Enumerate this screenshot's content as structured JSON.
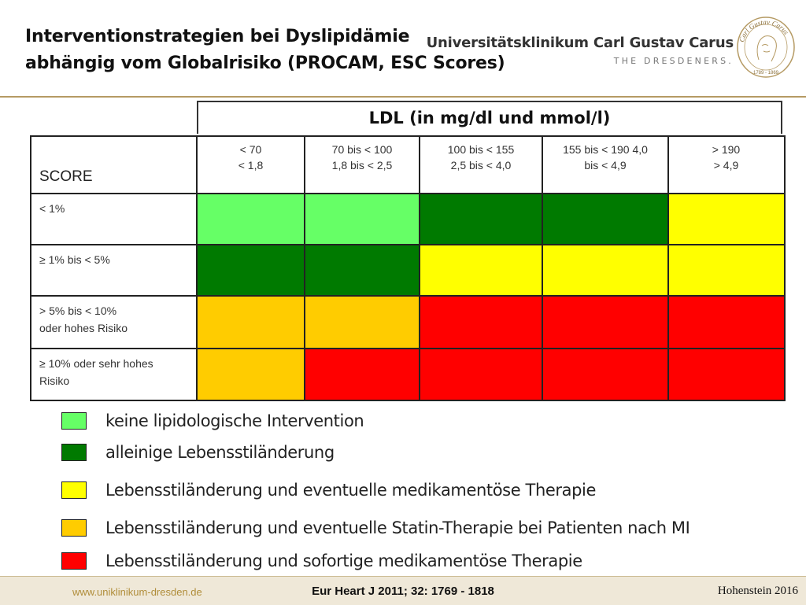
{
  "title": {
    "line1": "Interventionstrategien bei Dyslipidämie",
    "line2": "abhängig vom Globalrisiko (PROCAM, ESC Scores)"
  },
  "logo": {
    "name": "Universitätsklinikum Carl Gustav Carus",
    "tagline": "THE DRESDENERS.",
    "seal_text": "Carl Gustav Carus",
    "seal_years": "1789 - 1869",
    "seal_icon": "portrait-seal-icon"
  },
  "table": {
    "ldl_header": "LDL (in mg/dl und mmol/l)",
    "score_label": "SCORE",
    "columns": [
      {
        "line1": "< 70",
        "line2": "< 1,8"
      },
      {
        "line1": "70 bis < 100",
        "line2": "1,8 bis < 2,5"
      },
      {
        "line1": "100 bis < 155",
        "line2": "2,5 bis < 4,0"
      },
      {
        "line1": "155 bis < 190 4,0",
        "line2": "bis < 4,9"
      },
      {
        "line1": "> 190",
        "line2": "> 4,9"
      }
    ],
    "rows": [
      {
        "label_line1": "< 1%",
        "label_line2": "",
        "cells": [
          "#66ff66",
          "#66ff66",
          "#007a00",
          "#007a00",
          "#ffff00"
        ]
      },
      {
        "label_line1": "≥ 1% bis < 5%",
        "label_line2": "",
        "cells": [
          "#007a00",
          "#007a00",
          "#ffff00",
          "#ffff00",
          "#ffff00"
        ]
      },
      {
        "label_line1": "> 5% bis < 10%",
        "label_line2": "oder hohes Risiko",
        "cells": [
          "#ffcc00",
          "#ffcc00",
          "#ff0000",
          "#ff0000",
          "#ff0000"
        ]
      },
      {
        "label_line1": "≥ 10% oder sehr hohes",
        "label_line2": "Risiko",
        "cells": [
          "#ffcc00",
          "#ff0000",
          "#ff0000",
          "#ff0000",
          "#ff0000"
        ]
      }
    ]
  },
  "legend": [
    {
      "color": "#66ff66",
      "text": "keine lipidologische Intervention"
    },
    {
      "color": "#007a00",
      "text": "alleinige Lebensstiländerung"
    },
    {
      "color": "#ffff00",
      "text": "Lebensstiländerung und eventuelle medikamentöse Therapie"
    },
    {
      "color": "#ffcc00",
      "text": "Lebensstiländerung und eventuelle Statin-Therapie bei Patienten nach MI"
    },
    {
      "color": "#ff0000",
      "text": "Lebensstiländerung und sofortige medikamentöse Therapie"
    }
  ],
  "footer": {
    "url": "www.uniklinikum-dresden.de",
    "citation": "Eur Heart J 2011; 32: 1769 - 1818",
    "author": "Hohenstein 2016"
  }
}
